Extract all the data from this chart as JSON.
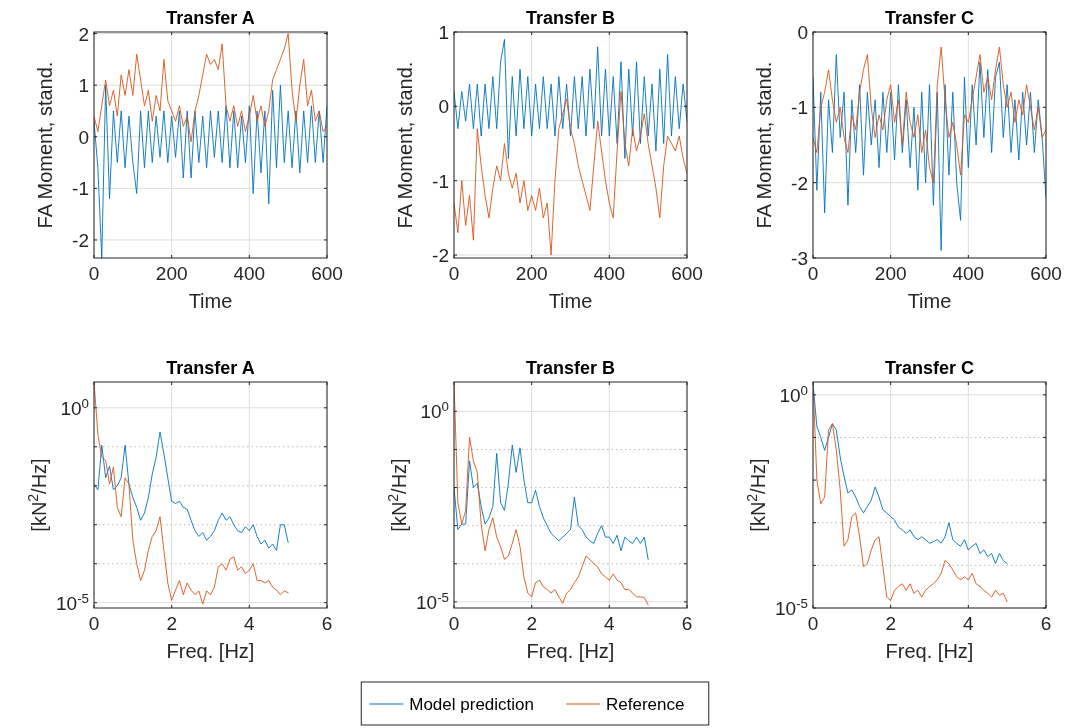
{
  "chart_data": [
    {
      "type": "line",
      "title": "Transfer A",
      "xlabel": "Time",
      "ylabel": "FA Moment, stand.",
      "xlim": [
        0,
        600
      ],
      "xticks": [
        0,
        200,
        400,
        600
      ],
      "ylim": [
        -2.35,
        2.03
      ],
      "yticks": [
        -2,
        -1,
        0,
        1,
        2
      ],
      "grid": true,
      "legend": "bottom",
      "x": [
        0,
        10,
        20,
        30,
        40,
        50,
        60,
        70,
        80,
        90,
        100,
        110,
        120,
        130,
        140,
        150,
        160,
        170,
        180,
        190,
        200,
        210,
        220,
        230,
        240,
        250,
        260,
        270,
        280,
        290,
        300,
        310,
        320,
        330,
        340,
        350,
        360,
        370,
        380,
        390,
        400,
        410,
        420,
        430,
        440,
        450,
        460,
        470,
        480,
        490,
        500,
        510,
        520,
        530,
        540,
        550,
        560,
        570,
        580,
        590,
        600
      ],
      "series": [
        {
          "name": "Model prediction",
          "color": "#0072bd",
          "values": [
            0.3,
            -0.6,
            -2.35,
            1.0,
            -1.2,
            0.5,
            -0.5,
            0.5,
            -0.6,
            0.4,
            -0.5,
            -1.1,
            0.5,
            -0.6,
            0.5,
            -0.5,
            0.4,
            -0.4,
            0.5,
            -0.5,
            0.4,
            -0.4,
            0.5,
            -0.8,
            0.5,
            -0.8,
            0.5,
            -0.5,
            0.4,
            -0.6,
            0.5,
            -0.4,
            0.5,
            -0.5,
            0.6,
            -0.6,
            0.5,
            -0.6,
            0.4,
            -0.5,
            0.6,
            -1.1,
            0.5,
            -0.7,
            0.5,
            -1.3,
            0.9,
            -0.6,
            1.0,
            -0.5,
            0.5,
            -0.6,
            0.5,
            -0.7,
            0.5,
            -0.5,
            0.6,
            -0.5,
            0.5,
            -0.5,
            0.6
          ]
        },
        {
          "name": "Reference",
          "color": "#d95319",
          "values": [
            0.4,
            0.1,
            0.6,
            1.1,
            0.6,
            0.9,
            0.4,
            1.2,
            0.8,
            1.3,
            0.8,
            1.6,
            1.1,
            0.6,
            0.9,
            0.3,
            0.8,
            0.5,
            1.5,
            0.7,
            0.5,
            0.3,
            0.6,
            0.2,
            0.4,
            -0.1,
            0.5,
            0.8,
            1.2,
            1.6,
            1.4,
            1.5,
            1.3,
            1.8,
            0.6,
            0.3,
            0.6,
            0.2,
            0.5,
            0.1,
            0.4,
            0.8,
            0.3,
            0.6,
            0.2,
            0.5,
            1.1,
            1.3,
            1.5,
            1.7,
            2.0,
            0.9,
            0.3,
            1.0,
            1.5,
            0.6,
            0.9,
            0.3,
            0.5,
            0.1,
            0.2
          ]
        }
      ]
    },
    {
      "type": "line",
      "title": "Transfer B",
      "xlabel": "Time",
      "ylabel": "FA Moment, stand.",
      "xlim": [
        0,
        600
      ],
      "xticks": [
        0,
        200,
        400,
        600
      ],
      "ylim": [
        -2.04,
        1
      ],
      "yticks": [
        -2,
        -1,
        0,
        1
      ],
      "grid": true,
      "x": [
        0,
        10,
        20,
        30,
        40,
        50,
        60,
        70,
        80,
        90,
        100,
        110,
        120,
        130,
        140,
        150,
        160,
        170,
        180,
        190,
        200,
        210,
        220,
        230,
        240,
        250,
        260,
        270,
        280,
        290,
        300,
        310,
        320,
        330,
        340,
        350,
        360,
        370,
        380,
        390,
        400,
        410,
        420,
        430,
        440,
        450,
        460,
        470,
        480,
        490,
        500,
        510,
        520,
        530,
        540,
        550,
        560,
        570,
        580,
        590,
        600
      ],
      "series": [
        {
          "color": "#0072bd",
          "values": [
            0.2,
            -0.3,
            0.2,
            -0.2,
            0.3,
            -0.3,
            0.3,
            -0.4,
            0.3,
            -0.3,
            0.4,
            -0.3,
            0.6,
            0.9,
            -0.7,
            0.4,
            -0.4,
            0.5,
            -0.3,
            0.4,
            -0.4,
            0.3,
            -0.3,
            0.4,
            -0.3,
            0.3,
            -0.4,
            0.4,
            -0.3,
            0.3,
            -0.4,
            0.4,
            -0.3,
            0.4,
            -0.4,
            0.5,
            -0.3,
            0.8,
            -0.4,
            0.5,
            -0.4,
            0.4,
            -0.5,
            0.6,
            -0.7,
            0.5,
            -0.4,
            0.6,
            -0.5,
            0.4,
            -0.4,
            0.3,
            -0.6,
            0.5,
            -0.5,
            0.7,
            -0.4,
            0.4,
            -0.3,
            0.3,
            -0.2
          ]
        },
        {
          "color": "#d95319",
          "values": [
            -1.3,
            -1.7,
            -1.0,
            -1.6,
            -1.2,
            -1.8,
            -0.3,
            -0.8,
            -1.2,
            -1.5,
            -1.1,
            -0.8,
            -1.0,
            -0.5,
            -0.9,
            -1.1,
            -0.9,
            -1.3,
            -1.0,
            -1.4,
            -1.2,
            -1.4,
            -1.1,
            -1.5,
            -1.3,
            -2.0,
            -1.0,
            -0.3,
            -0.1,
            0.1,
            -0.3,
            -0.5,
            -0.8,
            -1.0,
            -1.2,
            -1.4,
            -0.8,
            -0.2,
            -0.6,
            -1.0,
            -1.3,
            -1.5,
            -0.6,
            0.2,
            -0.5,
            -0.8,
            -0.3,
            -0.6,
            -0.4,
            -0.1,
            -0.5,
            -0.8,
            -1.1,
            -1.5,
            -0.8,
            -0.4,
            -0.5,
            -0.6,
            -0.4,
            -0.7,
            -0.9
          ]
        }
      ]
    },
    {
      "type": "line",
      "title": "Transfer C",
      "xlabel": "Time",
      "ylabel": "FA Moment, stand.",
      "xlim": [
        0,
        600
      ],
      "xticks": [
        0,
        200,
        400,
        600
      ],
      "ylim": [
        -3,
        0
      ],
      "yticks": [
        -3,
        -2,
        -1,
        0
      ],
      "grid": true,
      "x": [
        0,
        10,
        20,
        30,
        40,
        50,
        60,
        70,
        80,
        90,
        100,
        110,
        120,
        130,
        140,
        150,
        160,
        170,
        180,
        190,
        200,
        210,
        220,
        230,
        240,
        250,
        260,
        270,
        280,
        290,
        300,
        310,
        320,
        330,
        340,
        350,
        360,
        370,
        380,
        390,
        400,
        410,
        420,
        430,
        440,
        450,
        460,
        470,
        480,
        490,
        500,
        510,
        520,
        530,
        540,
        550,
        560,
        570,
        580,
        590,
        600
      ],
      "series": [
        {
          "color": "#0072bd",
          "values": [
            -0.6,
            -2.1,
            -0.8,
            -2.4,
            -0.9,
            -1.6,
            -0.3,
            -1.4,
            -0.8,
            -2.3,
            -0.9,
            -1.6,
            -0.7,
            -1.9,
            -0.8,
            -1.5,
            -0.9,
            -1.8,
            -0.8,
            -1.6,
            -0.8,
            -1.7,
            -0.7,
            -1.6,
            -0.9,
            -1.8,
            -1.0,
            -2.1,
            -0.8,
            -2.0,
            -0.7,
            -2.3,
            -0.8,
            -2.9,
            -0.7,
            -1.9,
            -0.8,
            -2.0,
            -2.5,
            -0.6,
            -1.8,
            -0.7,
            -1.5,
            -0.4,
            -1.4,
            -0.5,
            -1.6,
            -0.6,
            -0.4,
            -1.4,
            -0.7,
            -1.6,
            -0.9,
            -1.7,
            -0.8,
            -1.5,
            -0.8,
            -1.6,
            -0.9,
            -1.4,
            -2.2
          ]
        },
        {
          "color": "#d95319",
          "values": [
            -1.4,
            -1.6,
            -1.0,
            -0.8,
            -0.5,
            -0.9,
            -1.2,
            -1.0,
            -1.4,
            -1.6,
            -1.1,
            -1.3,
            -0.8,
            -0.5,
            -0.3,
            -1.0,
            -1.4,
            -1.1,
            -1.3,
            -0.9,
            -0.7,
            -1.2,
            -0.9,
            -1.5,
            -0.8,
            -1.2,
            -1.4,
            -1.1,
            -1.6,
            -1.3,
            -1.8,
            -2.0,
            -0.7,
            -0.2,
            -0.9,
            -1.4,
            -1.2,
            -1.5,
            -1.9,
            -1.1,
            -1.2,
            -0.9,
            -0.6,
            -0.3,
            -0.8,
            -0.6,
            -0.9,
            -0.5,
            -0.2,
            -0.7,
            -1.0,
            -0.8,
            -1.2,
            -0.9,
            -1.1,
            -0.7,
            -1.0,
            -1.3,
            -1.0,
            -1.4,
            -1.3
          ]
        }
      ]
    },
    {
      "type": "line",
      "title": "Transfer A",
      "xlabel": "Freq. [Hz]",
      "ylabel": "[kN$^{2}$/Hz]",
      "log": "y",
      "xlim": [
        0,
        6
      ],
      "xticks": [
        0,
        2,
        4,
        6
      ],
      "ylim": [
        7.3e-06,
        4.6
      ],
      "yticks": [
        {
          "value": 1,
          "label": "10$^{0}$"
        },
        {
          "value": 0.1,
          "label": null
        },
        {
          "value": 0.01,
          "label": null
        },
        {
          "value": 0.001,
          "label": null
        },
        {
          "value": 0.0001,
          "label": null
        },
        {
          "value": 1e-05,
          "label": "10$^{-5}$"
        }
      ],
      "grid": true,
      "x": [
        0,
        0.1,
        0.2,
        0.3,
        0.4,
        0.5,
        0.6,
        0.7,
        0.8,
        0.9,
        1.0,
        1.1,
        1.2,
        1.3,
        1.4,
        1.5,
        1.6,
        1.7,
        1.8,
        1.9,
        2.0,
        2.1,
        2.2,
        2.3,
        2.4,
        2.5,
        2.6,
        2.7,
        2.8,
        2.9,
        3.0,
        3.1,
        3.2,
        3.3,
        3.4,
        3.5,
        3.6,
        3.7,
        3.8,
        3.9,
        4.0,
        4.1,
        4.2,
        4.3,
        4.4,
        4.5,
        4.6,
        4.7,
        4.8,
        4.9,
        5.0
      ],
      "series": [
        {
          "color": "#0072bd",
          "values": [
            0.011,
            0.0079,
            0.11,
            0.016,
            0.032,
            0.0079,
            0.01,
            0.016,
            0.11,
            0.011,
            0.005,
            0.0028,
            0.0013,
            0.002,
            0.005,
            0.02,
            0.054,
            0.24,
            0.066,
            0.016,
            0.004,
            0.0035,
            0.004,
            0.0028,
            0.0025,
            0.0013,
            0.0007,
            0.0005,
            0.00063,
            0.0004,
            0.0005,
            0.0007,
            0.0013,
            0.002,
            0.0013,
            0.0016,
            0.001,
            0.0007,
            0.00063,
            0.00089,
            0.0007,
            0.001,
            0.0005,
            0.00032,
            0.0004,
            0.00025,
            0.00032,
            0.00022,
            0.001,
            0.001,
            0.00035
          ]
        },
        {
          "color": "#d95319",
          "values": [
            4.6,
            0.21,
            0.054,
            0.045,
            0.011,
            0.03,
            0.0028,
            0.0016,
            0.016,
            0.011,
            0.0004,
            0.0001,
            3.7e-05,
            6.8e-05,
            0.00022,
            0.0005,
            0.0007,
            0.0016,
            0.00022,
            3.2e-05,
            1.15e-05,
            2.1e-05,
            3.7e-05,
            1.6e-05,
            3.2e-05,
            2.1e-05,
            1.6e-05,
            2e-05,
            9.3e-06,
            2e-05,
            1.6e-05,
            2.5e-05,
            8.3e-05,
            0.0001,
            6.8e-05,
            0.00013,
            0.00015,
            6.8e-05,
            8.3e-05,
            5.6e-05,
            6.8e-05,
            0.0001,
            3.7e-05,
            3.7e-05,
            3.2e-05,
            3.7e-05,
            2.5e-05,
            2.1e-05,
            1.6e-05,
            2e-05,
            1.8e-05
          ]
        }
      ]
    },
    {
      "type": "line",
      "title": "Transfer B",
      "xlabel": "Freq. [Hz]",
      "ylabel": "[kN$^{2}$/Hz]",
      "log": "y",
      "xlim": [
        0,
        6
      ],
      "xticks": [
        0,
        2,
        4,
        6
      ],
      "ylim": [
        6.9e-06,
        5.9
      ],
      "yticks": [
        {
          "value": 1,
          "label": "10$^{0}$"
        },
        {
          "value": 0.1,
          "label": null
        },
        {
          "value": 0.01,
          "label": null
        },
        {
          "value": 0.001,
          "label": null
        },
        {
          "value": 0.0001,
          "label": null
        },
        {
          "value": 1e-05,
          "label": "10$^{-5}$"
        }
      ],
      "grid": true,
      "x": [
        0,
        0.1,
        0.2,
        0.3,
        0.4,
        0.5,
        0.6,
        0.7,
        0.8,
        0.9,
        1.0,
        1.1,
        1.2,
        1.3,
        1.4,
        1.5,
        1.6,
        1.7,
        1.8,
        1.9,
        2.0,
        2.1,
        2.2,
        2.3,
        2.4,
        2.5,
        2.6,
        2.7,
        2.8,
        2.9,
        3.0,
        3.1,
        3.2,
        3.3,
        3.4,
        3.5,
        3.6,
        3.7,
        3.8,
        3.9,
        4.0,
        4.1,
        4.2,
        4.3,
        4.4,
        4.5,
        4.6,
        4.7,
        4.8,
        4.9,
        5.0
      ],
      "series": [
        {
          "color": "#0072bd",
          "values": [
            0.01,
            0.00079,
            0.0011,
            0.0011,
            0.05,
            0.01,
            0.013,
            0.0032,
            0.0011,
            0.0016,
            0.0032,
            0.079,
            0.004,
            0.0025,
            0.013,
            0.13,
            0.025,
            0.11,
            0.016,
            0.004,
            0.004,
            0.0085,
            0.0032,
            0.0016,
            0.001,
            0.00063,
            0.0005,
            0.0004,
            0.0005,
            0.00063,
            0.00079,
            0.0056,
            0.001,
            0.00079,
            0.0005,
            0.0004,
            0.00034,
            0.00063,
            0.001,
            0.0005,
            0.0005,
            0.00034,
            0.00056,
            0.00022,
            0.0005,
            0.0004,
            0.00034,
            0.0005,
            0.00034,
            0.0005,
            0.00013
          ]
        },
        {
          "color": "#d95319",
          "values": [
            5.9,
            0.004,
            0.0011,
            0.0025,
            0.21,
            0.05,
            0.025,
            0.0011,
            0.00022,
            0.00079,
            0.0016,
            0.0005,
            0.00028,
            0.00013,
            0.00016,
            0.00034,
            0.00079,
            0.00028,
            4.5e-05,
            1.7e-05,
            1.35e-05,
            3.2e-05,
            3.7e-05,
            2.5e-05,
            2.1e-05,
            1.7e-05,
            2.1e-05,
            1.35e-05,
            9.1e-06,
            1.7e-05,
            2.1e-05,
            3.2e-05,
            4.5e-05,
            8.3e-05,
            0.00016,
            0.00013,
            0.0001,
            8.3e-05,
            5.4e-05,
            4.5e-05,
            3.7e-05,
            5.4e-05,
            3.7e-05,
            3.2e-05,
            2.1e-05,
            2.1e-05,
            1.7e-05,
            1.35e-05,
            1.35e-05,
            1.3e-05,
            8.3e-06
          ]
        }
      ]
    },
    {
      "type": "line",
      "title": "Transfer C",
      "xlabel": "Freq. [Hz]",
      "ylabel": "[kN$^{2}$/Hz]",
      "log": "y",
      "xlim": [
        0,
        6
      ],
      "xticks": [
        0,
        2,
        4,
        6
      ],
      "ylim": [
        1e-05,
        2
      ],
      "yticks": [
        {
          "value": 1,
          "label": "10$^{0}$"
        },
        {
          "value": 0.1,
          "label": null
        },
        {
          "value": 0.01,
          "label": null
        },
        {
          "value": 0.001,
          "label": null
        },
        {
          "value": 0.0001,
          "label": null
        },
        {
          "value": 1e-05,
          "label": "10$^{-5}$"
        }
      ],
      "grid": true,
      "x": [
        0,
        0.1,
        0.2,
        0.3,
        0.4,
        0.5,
        0.6,
        0.7,
        0.8,
        0.9,
        1.0,
        1.1,
        1.2,
        1.3,
        1.4,
        1.5,
        1.6,
        1.7,
        1.8,
        1.9,
        2.0,
        2.1,
        2.2,
        2.3,
        2.4,
        2.5,
        2.6,
        2.7,
        2.8,
        2.9,
        3.0,
        3.1,
        3.2,
        3.3,
        3.4,
        3.5,
        3.6,
        3.7,
        3.8,
        3.9,
        4.0,
        4.1,
        4.2,
        4.3,
        4.4,
        4.5,
        4.6,
        4.7,
        4.8,
        4.9,
        5.0
      ],
      "series": [
        {
          "color": "#0072bd",
          "values": [
            1.9,
            0.18,
            0.1,
            0.05,
            0.1,
            0.21,
            0.15,
            0.035,
            0.012,
            0.005,
            0.0059,
            0.004,
            0.0024,
            0.0017,
            0.0024,
            0.0034,
            0.0069,
            0.004,
            0.002,
            0.0017,
            0.0014,
            0.00115,
            0.00079,
            0.00068,
            0.00056,
            0.00068,
            0.00047,
            0.0004,
            0.00047,
            0.0004,
            0.00033,
            0.00036,
            0.0004,
            0.00033,
            0.00047,
            0.001,
            0.0004,
            0.00033,
            0.00028,
            0.0004,
            0.00023,
            0.00028,
            0.00033,
            0.00019,
            0.00023,
            0.00016,
            0.00019,
            0.00011,
            0.00019,
            0.00013,
            0.00011
          ]
        },
        {
          "color": "#d95319",
          "values": [
            2.0,
            0.01,
            0.0028,
            0.004,
            0.15,
            0.21,
            0.05,
            0.0059,
            0.00028,
            0.0004,
            0.0014,
            0.0017,
            0.00047,
            9.3e-05,
            0.00011,
            0.00023,
            0.0004,
            0.00047,
            9.3e-05,
            1.8e-05,
            1.5e-05,
            2.6e-05,
            3.2e-05,
            3.7e-05,
            2.6e-05,
            3.7e-05,
            2.2e-05,
            2.6e-05,
            1.8e-05,
            2.6e-05,
            3.2e-05,
            3.7e-05,
            4.6e-05,
            6.5e-05,
            0.00013,
            0.00011,
            7.8e-05,
            5.4e-05,
            4.6e-05,
            5.4e-05,
            4.6e-05,
            6.5e-05,
            3.7e-05,
            3.2e-05,
            2.6e-05,
            2.2e-05,
            1.8e-05,
            2.6e-05,
            2e-05,
            2.2e-05,
            1.4e-05
          ]
        }
      ]
    }
  ]
}
